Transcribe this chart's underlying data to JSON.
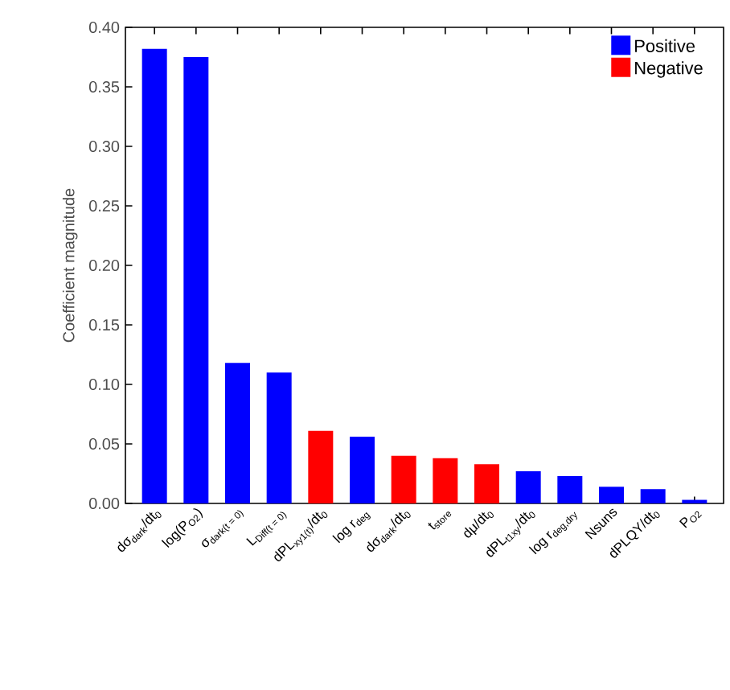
{
  "chart_data": {
    "type": "bar",
    "ylabel": "Coefficient magnitude",
    "categories": [
      "dσ$_{dark}$/dt$_{0}$",
      "log(P$_{O2}$)",
      "σ$_{dark(t = 0)}$",
      "L$_{Diff(t = 0)}$",
      "dPL$_{xy1(t)}$/dt$_{0}$",
      "log r$_{deg}$",
      "dσ$_{dark}$/dt$_{0}$",
      "t$_{store}$",
      "dμ/dt$_{0}$",
      "dPL$_{t1xy}$/dt$_{0}$",
      "log r$_{deg,dry}$",
      "Nsuns",
      "dPLQY/dt$_{0}$",
      "P$_{O2}$"
    ],
    "series": [
      {
        "name": "Positive",
        "color": "#0000ff",
        "values": [
          0.382,
          0.375,
          0.118,
          0.11,
          null,
          0.056,
          null,
          null,
          null,
          0.027,
          0.023,
          0.014,
          0.012,
          0.003
        ]
      },
      {
        "name": "Negative",
        "color": "#ff0000",
        "values": [
          null,
          null,
          null,
          null,
          0.061,
          null,
          0.04,
          0.038,
          0.033,
          null,
          null,
          null,
          null,
          null
        ]
      }
    ],
    "ylim": [
      0,
      0.4
    ],
    "yticks": [
      {
        "value": 0,
        "label": "0.00"
      },
      {
        "value": 0.05,
        "label": "0.05"
      },
      {
        "value": 0.1,
        "label": "0.10"
      },
      {
        "value": 0.15,
        "label": "0.15"
      },
      {
        "value": 0.2,
        "label": "0.20"
      },
      {
        "value": 0.25,
        "label": "0.25"
      },
      {
        "value": 0.3,
        "label": "0.30"
      },
      {
        "value": 0.35,
        "label": "0.35"
      },
      {
        "value": 0.4,
        "label": "0.40"
      }
    ],
    "grid": false,
    "legend": "top right"
  }
}
